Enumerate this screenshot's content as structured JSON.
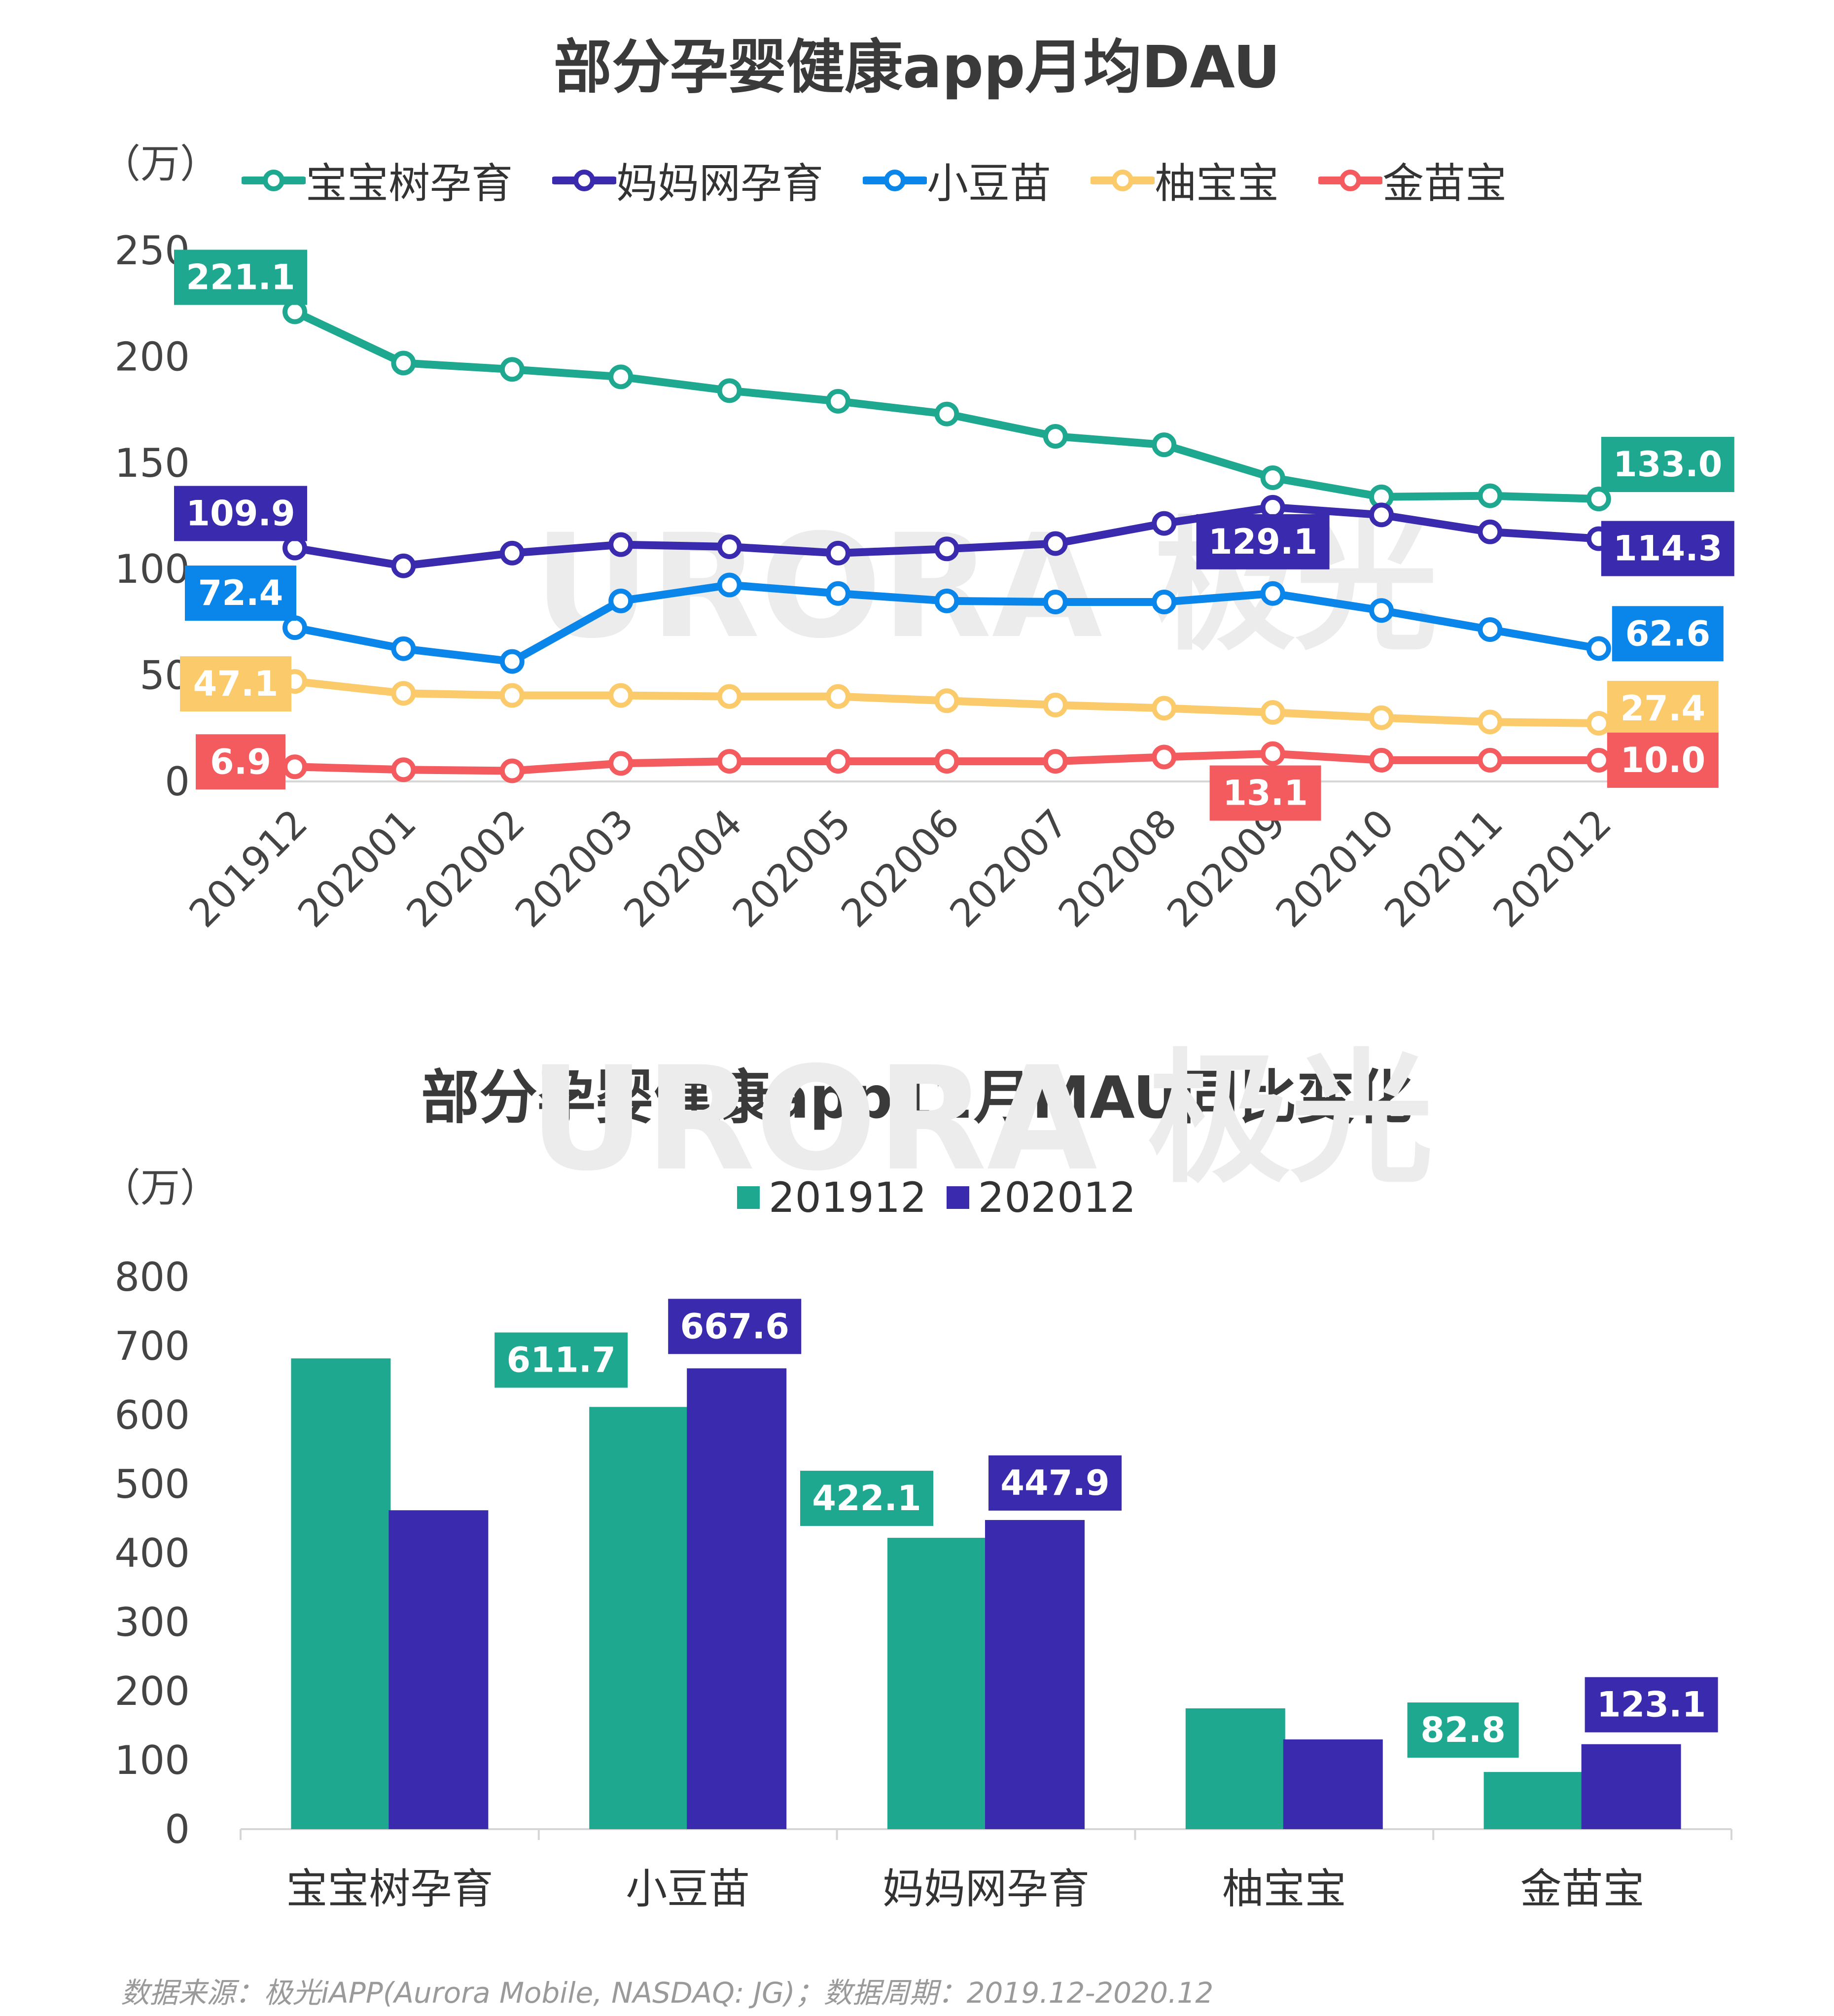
{
  "chart_data": [
    {
      "type": "line",
      "title": "部分孕婴健康app月均DAU",
      "unit": "（万）",
      "x": [
        "201912",
        "202001",
        "202002",
        "202003",
        "202004",
        "202005",
        "202006",
        "202007",
        "202008",
        "202009",
        "202010",
        "202011",
        "202012"
      ],
      "ylim": [
        0,
        250
      ],
      "yticks": [
        "0",
        "50",
        "100",
        "150",
        "200",
        "250"
      ],
      "series": [
        {
          "name": "宝宝树孕育",
          "color": "#1ea88f",
          "values": [
            221.1,
            197,
            194,
            190.5,
            184,
            179,
            173,
            162.5,
            158.5,
            143,
            134,
            134.5,
            133.0
          ],
          "labels": {
            "0": "221.1",
            "12": "133.0"
          }
        },
        {
          "name": "妈妈网孕育",
          "color": "#3a2bae",
          "values": [
            109.9,
            101.5,
            107.5,
            111.5,
            110.5,
            107.5,
            109.5,
            112,
            121.5,
            129.1,
            125.5,
            117.5,
            114.3
          ],
          "labels": {
            "0": "109.9",
            "9": "129.1",
            "12": "114.3"
          }
        },
        {
          "name": "小豆苗",
          "color": "#0a86ea",
          "values": [
            72.4,
            62.5,
            56.5,
            85,
            92.5,
            88.5,
            85,
            84.5,
            84.5,
            88.5,
            80.5,
            71.5,
            62.6
          ],
          "labels": {
            "0": "72.4",
            "12": "62.6"
          }
        },
        {
          "name": "柚宝宝",
          "color": "#fbcb6b",
          "values": [
            47.1,
            41.5,
            40.5,
            40.5,
            40,
            40,
            38,
            36,
            34.5,
            32.5,
            30,
            28,
            27.4
          ],
          "labels": {
            "0": "47.1",
            "12": "27.4"
          }
        },
        {
          "name": "金苗宝",
          "color": "#f45b5f",
          "values": [
            6.9,
            5.5,
            5,
            8.5,
            9.5,
            9.5,
            9.5,
            9.5,
            11.5,
            13.1,
            10,
            10,
            10.0
          ],
          "labels": {
            "0": "6.9",
            "9": "13.1",
            "12": "10.0"
          }
        }
      ]
    },
    {
      "type": "bar",
      "title": "部分孕婴健康app12月MAU同比变化",
      "unit": "（万）",
      "categories": [
        "宝宝树孕育",
        "小豆苗",
        "妈妈网孕育",
        "柚宝宝",
        "金苗宝"
      ],
      "ylim": [
        0,
        800
      ],
      "yticks": [
        "0",
        "100",
        "200",
        "300",
        "400",
        "500",
        "600",
        "700",
        "800"
      ],
      "series": [
        {
          "name": "201912",
          "color": "#1ea88f",
          "values": [
            682,
            611.7,
            422.1,
            175,
            82.8
          ],
          "labels": [
            null,
            "611.7",
            "422.1",
            null,
            "82.8"
          ]
        },
        {
          "name": "202012",
          "color": "#3a2bae",
          "values": [
            462,
            667.6,
            447.9,
            130,
            123.1
          ],
          "labels": [
            null,
            "667.6",
            "447.9",
            null,
            "123.1"
          ]
        }
      ]
    }
  ],
  "footer": "数据来源：极光iAPP(Aurora Mobile, NASDAQ: JG)；数据周期：2019.12-2020.12",
  "watermark": "URORA 极光"
}
